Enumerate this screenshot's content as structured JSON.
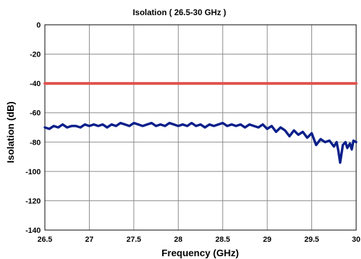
{
  "chart_data": {
    "type": "line",
    "title": "Isolation ( 26.5-30 GHz )",
    "xlabel": "Frequency (GHz)",
    "ylabel": "Isolation (dB)",
    "xlim": [
      26.5,
      30
    ],
    "ylim": [
      -140,
      0
    ],
    "x_ticks": [
      26.5,
      27,
      27.5,
      28,
      28.5,
      29,
      29.5,
      30
    ],
    "x_tick_labels": [
      "26.5",
      "27",
      "27.5",
      "28",
      "28.5",
      "29",
      "29.5",
      "30"
    ],
    "y_ticks": [
      0,
      -20,
      -40,
      -60,
      -80,
      -100,
      -120,
      -140
    ],
    "y_tick_labels": [
      "0",
      "-20",
      "-40",
      "-60",
      "-80",
      "-100",
      "-120",
      "-140"
    ],
    "grid": true,
    "legend": "none",
    "series": [
      {
        "color": "#e0534d",
        "x": [
          26.5,
          30
        ],
        "y": [
          -40,
          -40
        ]
      },
      {
        "color": "#0b1f8a",
        "x": [
          26.5,
          26.55,
          26.6,
          26.65,
          26.7,
          26.75,
          26.8,
          26.85,
          26.9,
          26.95,
          27.0,
          27.05,
          27.1,
          27.15,
          27.2,
          27.25,
          27.3,
          27.35,
          27.4,
          27.45,
          27.5,
          27.55,
          27.6,
          27.65,
          27.7,
          27.75,
          27.8,
          27.85,
          27.9,
          27.95,
          28.0,
          28.05,
          28.1,
          28.15,
          28.2,
          28.25,
          28.3,
          28.35,
          28.4,
          28.45,
          28.5,
          28.55,
          28.6,
          28.65,
          28.7,
          28.75,
          28.8,
          28.85,
          28.9,
          28.95,
          29.0,
          29.05,
          29.1,
          29.15,
          29.2,
          29.25,
          29.3,
          29.35,
          29.4,
          29.45,
          29.5,
          29.55,
          29.6,
          29.65,
          29.7,
          29.75,
          29.78,
          29.8,
          29.82,
          29.85,
          29.88,
          29.9,
          29.93,
          29.95,
          29.97,
          30.0
        ],
        "y": [
          -70,
          -71,
          -69,
          -70,
          -68,
          -70,
          -69,
          -69,
          -70,
          -68,
          -69,
          -68,
          -69,
          -68,
          -70,
          -68,
          -69,
          -67,
          -68,
          -69,
          -67,
          -68,
          -69,
          -68,
          -67,
          -69,
          -68,
          -69,
          -67,
          -68,
          -69,
          -68,
          -69,
          -67,
          -69,
          -68,
          -70,
          -68,
          -69,
          -68,
          -67,
          -69,
          -68,
          -69,
          -68,
          -70,
          -68,
          -69,
          -70,
          -68,
          -71,
          -69,
          -73,
          -70,
          -72,
          -76,
          -72,
          -75,
          -73,
          -77,
          -74,
          -82,
          -78,
          -80,
          -79,
          -83,
          -80,
          -86,
          -94,
          -82,
          -80,
          -84,
          -81,
          -85,
          -79,
          -80
        ]
      }
    ]
  }
}
